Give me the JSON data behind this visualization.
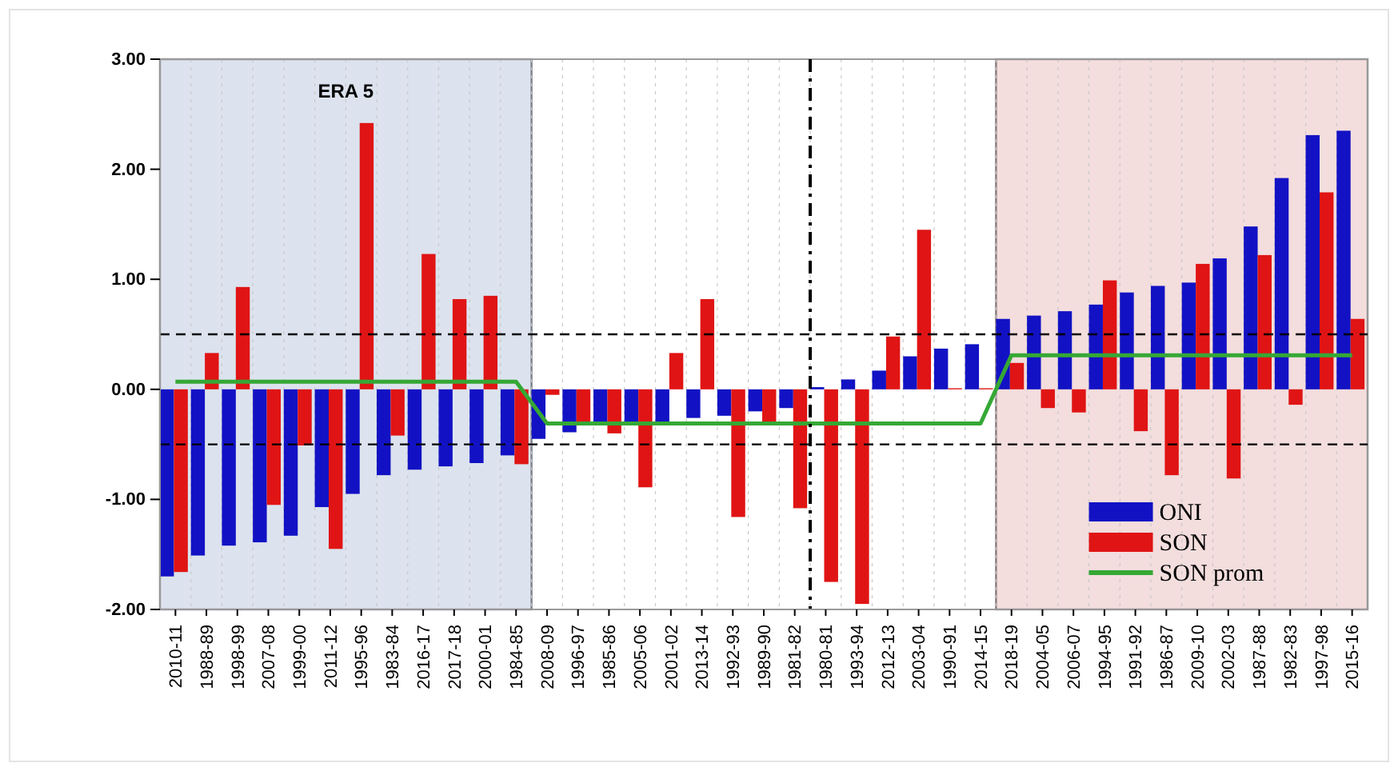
{
  "chart_data": {
    "type": "bar",
    "categories": [
      "2010-11",
      "1988-89",
      "1998-99",
      "2007-08",
      "1999-00",
      "2011-12",
      "1995-96",
      "1983-84",
      "2016-17",
      "2017-18",
      "2000-01",
      "1984-85",
      "2008-09",
      "1996-97",
      "1985-86",
      "2005-06",
      "2001-02",
      "2013-14",
      "1992-93",
      "1989-90",
      "1981-82",
      "1980-81",
      "1993-94",
      "2012-13",
      "2003-04",
      "1990-91",
      "2014-15",
      "2018-19",
      "2004-05",
      "2006-07",
      "1994-95",
      "1991-92",
      "1986-87",
      "2009-10",
      "2002-03",
      "1987-88",
      "1982-83",
      "1997-98",
      "2015-16"
    ],
    "series": [
      {
        "name": "ONI",
        "color": "#1212c4",
        "values": [
          -1.7,
          -1.51,
          -1.42,
          -1.39,
          -1.33,
          -1.07,
          -0.95,
          -0.78,
          -0.73,
          -0.7,
          -0.67,
          -0.6,
          -0.45,
          -0.39,
          -0.32,
          -0.3,
          -0.3,
          -0.26,
          -0.24,
          -0.2,
          -0.17,
          0.02,
          0.09,
          0.17,
          0.3,
          0.37,
          0.41,
          0.64,
          0.67,
          0.71,
          0.77,
          0.88,
          0.94,
          0.97,
          1.19,
          1.48,
          1.92,
          2.31,
          2.35
        ]
      },
      {
        "name": "SON",
        "color": "#e01414",
        "values": [
          -1.66,
          0.33,
          0.93,
          -1.05,
          -0.51,
          -1.45,
          2.42,
          -0.42,
          1.23,
          0.82,
          0.85,
          -0.68,
          -0.05,
          -0.3,
          -0.4,
          -0.89,
          0.33,
          0.82,
          -1.16,
          -0.3,
          -1.08,
          -1.75,
          -1.95,
          0.48,
          1.45,
          0.01,
          0.01,
          0.24,
          -0.17,
          -0.21,
          0.99,
          -0.38,
          -0.78,
          1.14,
          -0.81,
          1.22,
          -0.14,
          1.79,
          0.64
        ]
      },
      {
        "name": "SON prom",
        "type": "line",
        "color": "#35a835",
        "values": [
          0.07,
          0.07,
          0.07,
          0.07,
          0.07,
          0.07,
          0.07,
          0.07,
          0.07,
          0.07,
          0.07,
          0.07,
          -0.31,
          -0.31,
          -0.31,
          -0.31,
          -0.31,
          -0.31,
          -0.31,
          -0.31,
          -0.31,
          -0.31,
          -0.31,
          -0.31,
          -0.31,
          -0.31,
          -0.31,
          0.31,
          0.31,
          0.31,
          0.31,
          0.31,
          0.31,
          0.31,
          0.31,
          0.31,
          0.31,
          0.31,
          0.31
        ]
      }
    ],
    "ylim": [
      -2,
      3
    ],
    "yticks": [
      {
        "value": -2,
        "label": "-2.00"
      },
      {
        "value": -1,
        "label": "-1.00"
      },
      {
        "value": 0,
        "label": "0.00"
      },
      {
        "value": 1,
        "label": "1.00"
      },
      {
        "value": 2,
        "label": "2.00"
      },
      {
        "value": 3,
        "label": "3.00"
      }
    ],
    "ref_lines": [
      {
        "axis": "y",
        "value": 0.5,
        "line_style": "dashed",
        "color": "#000000"
      },
      {
        "axis": "y",
        "value": -0.5,
        "line_style": "dashed",
        "color": "#000000"
      },
      {
        "axis": "x",
        "value": "1980-81",
        "line_style": "dashdot",
        "color": "#000000"
      }
    ],
    "bands": [
      {
        "axis": "x",
        "from": "2010-11",
        "to": "1984-85",
        "label": "ERA 5",
        "color": "#dce3ee"
      },
      {
        "axis": "x",
        "from": "2018-19",
        "to": "2015-16",
        "color": "#f3dddd"
      }
    ],
    "grid": "x",
    "legend": "bottom right"
  }
}
